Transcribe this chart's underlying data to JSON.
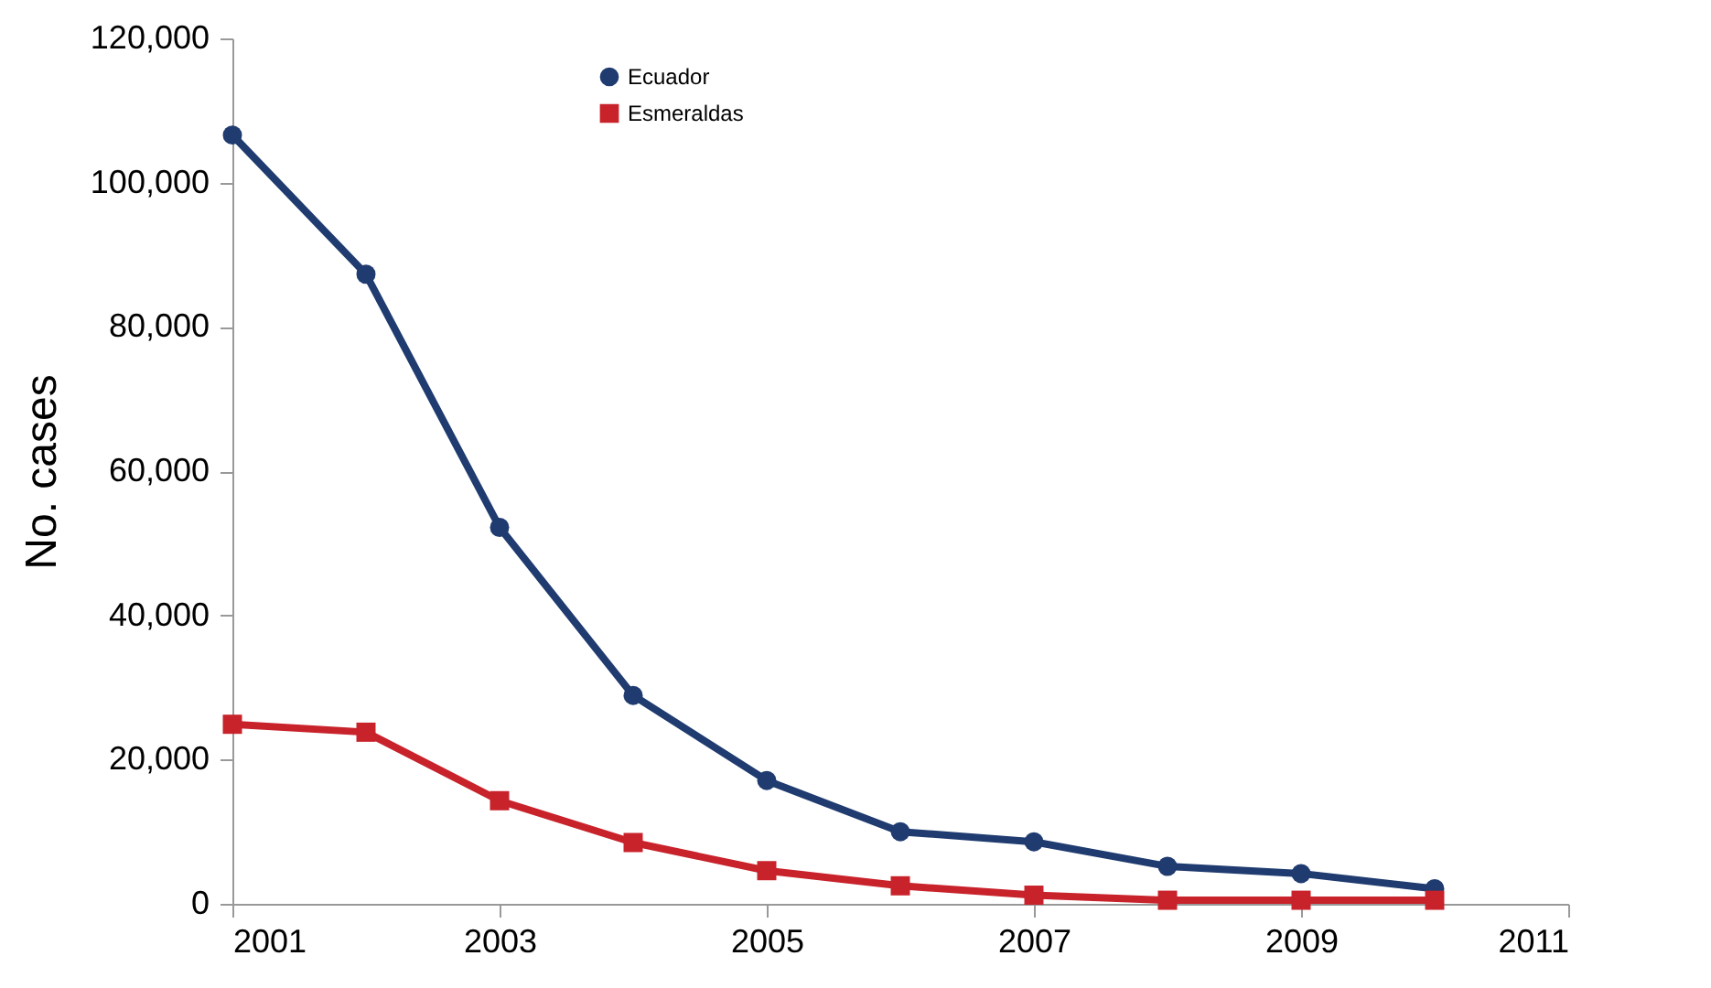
{
  "chart_data": {
    "type": "line",
    "ylabel": "No. cases",
    "x": [
      2001,
      2002,
      2003,
      2004,
      2005,
      2006,
      2007,
      2008,
      2009,
      2010
    ],
    "series": [
      {
        "name": "Ecuador",
        "color": "#1f3b6f",
        "marker": "circle",
        "values": [
          106600,
          87300,
          52200,
          28900,
          17100,
          10000,
          8600,
          5200,
          4200,
          2100
        ]
      },
      {
        "name": "Esmeraldas",
        "color": "#c8222b",
        "marker": "square",
        "values": [
          24900,
          23800,
          14300,
          8500,
          4600,
          2500,
          1200,
          500,
          500,
          500
        ]
      }
    ],
    "xlim": [
      2001,
      2011
    ],
    "xticks": [
      2001,
      2003,
      2005,
      2007,
      2009,
      2011
    ],
    "ylim": [
      0,
      120000
    ],
    "yticks": [
      {
        "value": 0,
        "label": "0"
      },
      {
        "value": 20000,
        "label": "20,000"
      },
      {
        "value": 40000,
        "label": "40,000"
      },
      {
        "value": 60000,
        "label": "60,000"
      },
      {
        "value": 80000,
        "label": "80,000"
      },
      {
        "value": 100000,
        "label": "100,000"
      },
      {
        "value": 120000,
        "label": "120,000"
      }
    ],
    "grid": false,
    "legend": "top",
    "line_style": "solid"
  }
}
